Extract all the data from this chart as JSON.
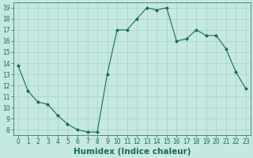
{
  "x": [
    0,
    1,
    2,
    3,
    4,
    5,
    6,
    7,
    8,
    9,
    10,
    11,
    12,
    13,
    14,
    15,
    16,
    17,
    18,
    19,
    20,
    21,
    22,
    23
  ],
  "y": [
    13.8,
    11.5,
    10.5,
    10.3,
    9.3,
    8.5,
    8.0,
    7.8,
    7.8,
    13.0,
    17.0,
    17.0,
    18.0,
    19.0,
    18.8,
    19.0,
    16.0,
    16.2,
    17.0,
    16.5,
    16.5,
    15.3,
    13.2,
    11.7
  ],
  "line_color": "#1a6b5a",
  "marker": "D",
  "marker_size": 2.0,
  "bg_color": "#c5e8e0",
  "grid_color": "#a8cfc8",
  "xlabel": "Humidex (Indice chaleur)",
  "ylim": [
    7.5,
    19.5
  ],
  "xlim": [
    -0.5,
    23.5
  ],
  "yticks": [
    8,
    9,
    10,
    11,
    12,
    13,
    14,
    15,
    16,
    17,
    18,
    19
  ],
  "xticks": [
    0,
    1,
    2,
    3,
    4,
    5,
    6,
    7,
    8,
    9,
    10,
    11,
    12,
    13,
    14,
    15,
    16,
    17,
    18,
    19,
    20,
    21,
    22,
    23
  ],
  "tick_fontsize": 5.5,
  "xlabel_fontsize": 7.5,
  "xlabel_fontweight": "bold",
  "linewidth": 0.8,
  "tick_color": "#1a6b5a",
  "label_color": "#1a6b5a"
}
